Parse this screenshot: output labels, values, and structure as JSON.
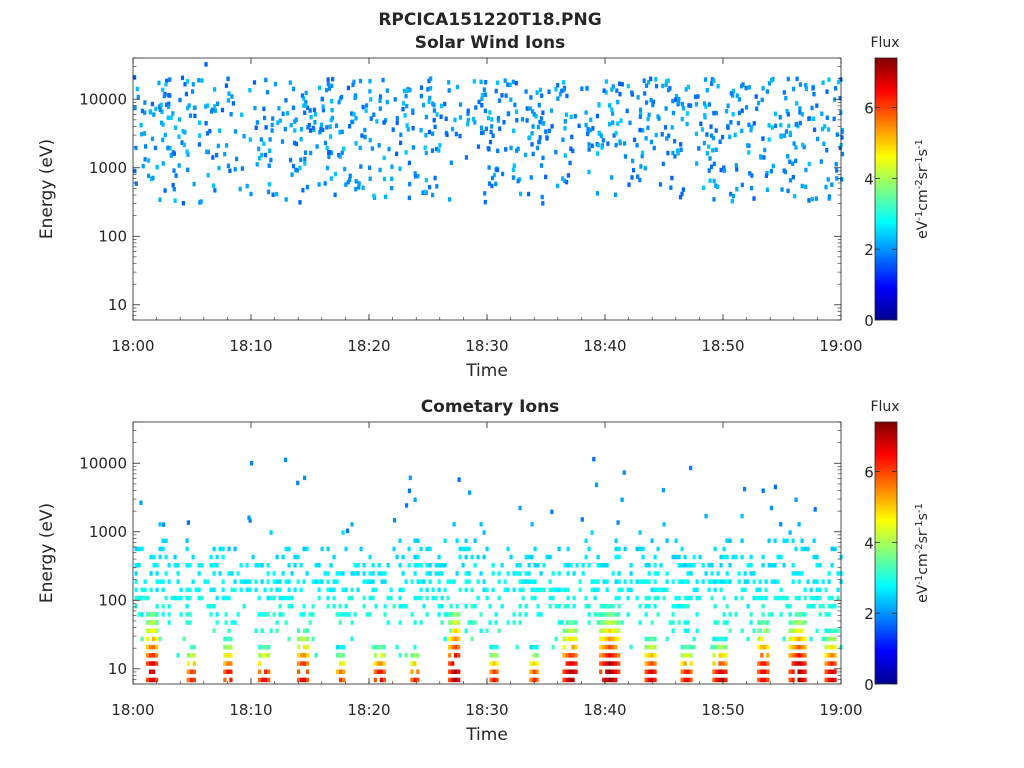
{
  "figure": {
    "title": "RPCICA151220T18.PNG"
  },
  "chart_data": [
    {
      "type": "heatmap",
      "title": "Solar Wind Ions",
      "xlabel": "Time",
      "ylabel": "Energy (eV)",
      "x_ticks": [
        "18:00",
        "18:10",
        "18:20",
        "18:30",
        "18:40",
        "18:50",
        "19:00"
      ],
      "x_range_minutes": [
        0,
        60
      ],
      "y_scale": "log",
      "y_ticks": [
        10,
        100,
        1000,
        10000
      ],
      "y_tick_labels": [
        "10",
        "100",
        "1000",
        "10000"
      ],
      "ylim": [
        6,
        40000
      ],
      "colorbar": {
        "label": "Flux",
        "units": "eV-1cm-2sr-1s-1",
        "ticks": [
          0,
          2,
          4,
          6
        ],
        "range": [
          0,
          7.4
        ],
        "colormap": "jet"
      },
      "band": {
        "e_min": 300,
        "e_max": 20000,
        "flux_min": 1.6,
        "flux_max": 2.4,
        "description": "sparse scattered counts"
      },
      "noise_seed": 11
    },
    {
      "type": "heatmap",
      "title": "Cometary Ions",
      "xlabel": "Time",
      "ylabel": "Energy (eV)",
      "x_ticks": [
        "18:00",
        "18:10",
        "18:20",
        "18:30",
        "18:40",
        "18:50",
        "19:00"
      ],
      "x_range_minutes": [
        0,
        60
      ],
      "y_scale": "log",
      "y_ticks": [
        10,
        100,
        1000,
        10000
      ],
      "y_tick_labels": [
        "10",
        "100",
        "1000",
        "10000"
      ],
      "ylim": [
        6,
        40000
      ],
      "colorbar": {
        "label": "Flux",
        "units": "eV-1cm-2sr-1s-1",
        "ticks": [
          0,
          2,
          4,
          6
        ],
        "range": [
          0,
          7.4
        ],
        "colormap": "jet"
      },
      "bursts": [
        {
          "t": 1.5,
          "width": 0.8,
          "top_energy": 60,
          "peak_flux": 7.0
        },
        {
          "t": 4.9,
          "width": 0.7,
          "top_energy": 20,
          "peak_flux": 6.5
        },
        {
          "t": 8.0,
          "width": 0.7,
          "top_energy": 25,
          "peak_flux": 6.7
        },
        {
          "t": 11.0,
          "width": 0.8,
          "top_energy": 20,
          "peak_flux": 6.8
        },
        {
          "t": 14.3,
          "width": 0.8,
          "top_energy": 35,
          "peak_flux": 6.8
        },
        {
          "t": 17.5,
          "width": 0.6,
          "top_energy": 18,
          "peak_flux": 6.2
        },
        {
          "t": 20.8,
          "width": 0.8,
          "top_energy": 20,
          "peak_flux": 6.9
        },
        {
          "t": 23.8,
          "width": 0.6,
          "top_energy": 18,
          "peak_flux": 6.5
        },
        {
          "t": 27.2,
          "width": 1.0,
          "top_energy": 60,
          "peak_flux": 7.2
        },
        {
          "t": 30.5,
          "width": 0.6,
          "top_energy": 18,
          "peak_flux": 6.6
        },
        {
          "t": 33.9,
          "width": 0.6,
          "top_energy": 18,
          "peak_flux": 6.4
        },
        {
          "t": 37.0,
          "width": 1.2,
          "top_energy": 40,
          "peak_flux": 7.3
        },
        {
          "t": 40.3,
          "width": 1.6,
          "top_energy": 55,
          "peak_flux": 7.3
        },
        {
          "t": 43.8,
          "width": 0.9,
          "top_energy": 25,
          "peak_flux": 7.0
        },
        {
          "t": 46.8,
          "width": 0.8,
          "top_energy": 20,
          "peak_flux": 6.8
        },
        {
          "t": 49.7,
          "width": 1.2,
          "top_energy": 22,
          "peak_flux": 7.1
        },
        {
          "t": 53.3,
          "width": 0.8,
          "top_energy": 45,
          "peak_flux": 6.9
        },
        {
          "t": 56.3,
          "width": 1.5,
          "top_energy": 50,
          "peak_flux": 7.2
        },
        {
          "t": 59.1,
          "width": 1.0,
          "top_energy": 30,
          "peak_flux": 7.0
        }
      ],
      "background": {
        "e_min": 12,
        "e_max": 12000,
        "flux_min": 1.9,
        "flux_max": 3.6
      },
      "noise_seed": 23
    }
  ]
}
